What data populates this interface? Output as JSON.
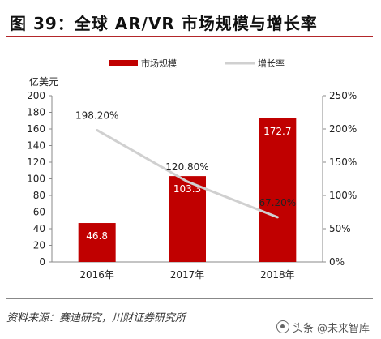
{
  "header": {
    "title": "图 39：全球 AR/VR 市场规模与增长率"
  },
  "footer": {
    "source": "资料来源：赛迪研究，川财证券研究所",
    "watermark": "头条 @未来智库"
  },
  "colors": {
    "bar": "#c00000",
    "line": "#d0d0d0",
    "accent": "#b3262a"
  },
  "chart_data": {
    "type": "bar",
    "categories": [
      "2016年",
      "2017年",
      "2018年"
    ],
    "series": [
      {
        "name": "市场规模",
        "type": "bar",
        "axis": "left",
        "values": [
          46.8,
          103.3,
          172.7
        ],
        "labels": [
          "46.8",
          "103.3",
          "172.7"
        ]
      },
      {
        "name": "增长率",
        "type": "line",
        "axis": "right",
        "values": [
          198.2,
          120.8,
          67.2
        ],
        "labels": [
          "198.20%",
          "120.80%",
          "67.20%"
        ]
      }
    ],
    "y_left": {
      "unit_label": "亿美元",
      "ylim": [
        0,
        200
      ],
      "ticks": [
        "0",
        "20",
        "40",
        "60",
        "80",
        "100",
        "120",
        "140",
        "160",
        "180",
        "200"
      ]
    },
    "y_right": {
      "ylim": [
        0,
        250
      ],
      "ticks": [
        "0%",
        "50%",
        "100%",
        "150%",
        "200%",
        "250%"
      ]
    },
    "legend_position": "top",
    "grid": false
  }
}
